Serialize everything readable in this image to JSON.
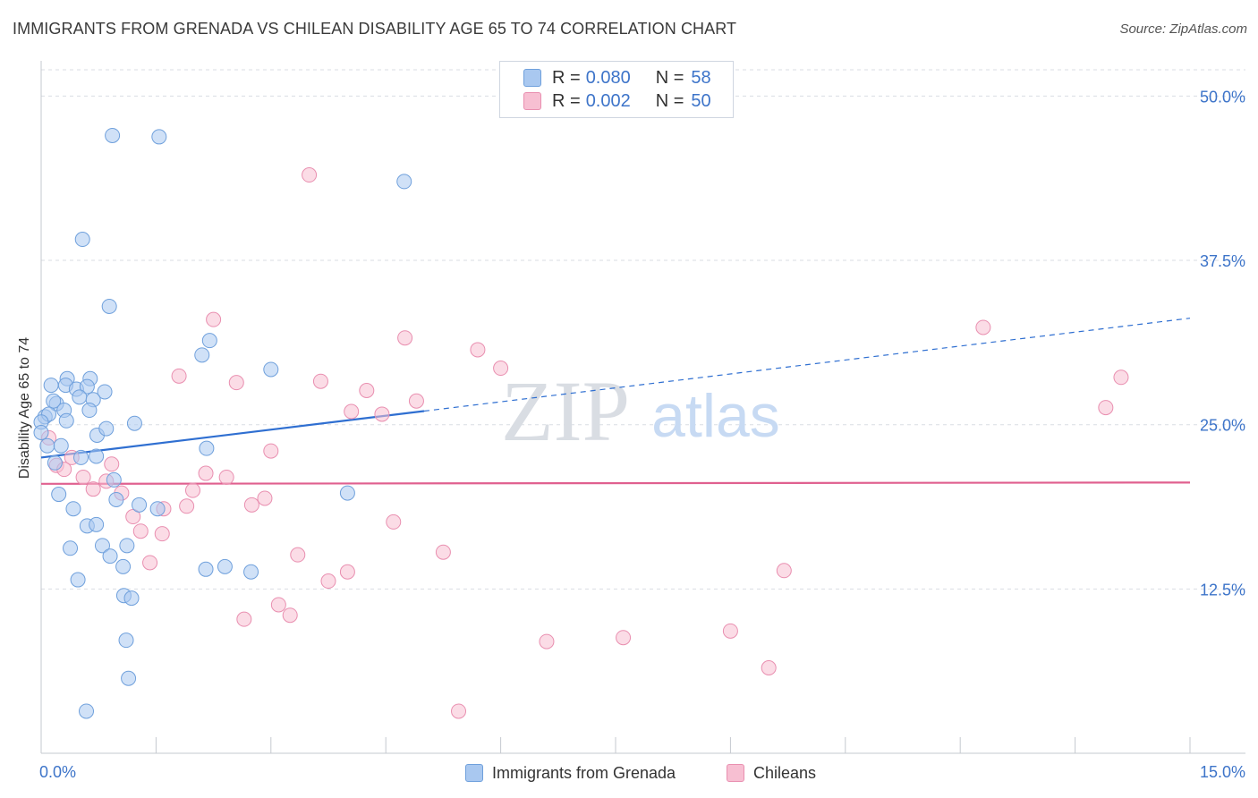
{
  "title": "IMMIGRANTS FROM GRENADA VS CHILEAN DISABILITY AGE 65 TO 74 CORRELATION CHART",
  "source": "Source: ZipAtlas.com",
  "watermark": {
    "zip": "ZIP",
    "atlas": "atlas"
  },
  "legend": {
    "series1": {
      "r_label": "R = ",
      "r_value": "0.080",
      "n_label": "N = ",
      "n_value": "58"
    },
    "series2": {
      "r_label": "R = ",
      "r_value": "0.002",
      "n_label": "N = ",
      "n_value": "50"
    }
  },
  "colors": {
    "blue_fill": "#a9c8f0",
    "blue_stroke": "#6fa0dc",
    "blue_line": "#2f6fd1",
    "pink_fill": "#f7bfd2",
    "pink_stroke": "#e98fb0",
    "pink_line": "#e0608f",
    "axis_text": "#3d74c9",
    "grid": "#d9dde3"
  },
  "chart_data": {
    "type": "scatter",
    "title": "IMMIGRANTS FROM GRENADA VS CHILEAN DISABILITY AGE 65 TO 74 CORRELATION CHART",
    "xlabel": "",
    "ylabel": "Disability Age 65 to 74",
    "xlim": [
      0,
      15
    ],
    "ylim": [
      0,
      52
    ],
    "x_tick_labels": [
      "0.0%",
      "15.0%"
    ],
    "y_ticks": [
      12.5,
      25.0,
      37.5,
      50.0
    ],
    "y_tick_labels": [
      "12.5%",
      "25.0%",
      "37.5%",
      "50.0%"
    ],
    "legend_position": "bottom",
    "series": [
      {
        "name": "Immigrants from Grenada",
        "color": "#a9c8f0",
        "r": 0.08,
        "n": 58,
        "trend": {
          "x0": 0.0,
          "y0": 22.5,
          "x1": 15.0,
          "y1": 33.1,
          "solid_until_x": 5.0
        },
        "points": [
          [
            0.93,
            47.0
          ],
          [
            1.54,
            46.9
          ],
          [
            4.74,
            43.5
          ],
          [
            0.54,
            39.1
          ],
          [
            0.89,
            34.0
          ],
          [
            2.1,
            30.3
          ],
          [
            2.2,
            31.4
          ],
          [
            3.0,
            29.2
          ],
          [
            0.13,
            28.0
          ],
          [
            0.34,
            28.5
          ],
          [
            0.64,
            28.5
          ],
          [
            0.32,
            28.0
          ],
          [
            0.46,
            27.7
          ],
          [
            0.6,
            27.9
          ],
          [
            0.83,
            27.5
          ],
          [
            0.5,
            27.1
          ],
          [
            0.68,
            26.9
          ],
          [
            0.2,
            26.6
          ],
          [
            0.16,
            26.8
          ],
          [
            0.05,
            25.6
          ],
          [
            0.1,
            25.8
          ],
          [
            0.3,
            26.1
          ],
          [
            0.63,
            26.1
          ],
          [
            0.33,
            25.3
          ],
          [
            0.0,
            25.2
          ],
          [
            0.0,
            24.4
          ],
          [
            0.73,
            24.2
          ],
          [
            0.85,
            24.7
          ],
          [
            1.22,
            25.1
          ],
          [
            0.08,
            23.4
          ],
          [
            0.26,
            23.4
          ],
          [
            2.16,
            23.2
          ],
          [
            0.18,
            22.1
          ],
          [
            0.52,
            22.5
          ],
          [
            0.72,
            22.6
          ],
          [
            0.95,
            20.8
          ],
          [
            4.0,
            19.8
          ],
          [
            0.23,
            19.7
          ],
          [
            0.98,
            19.3
          ],
          [
            1.28,
            18.9
          ],
          [
            1.52,
            18.6
          ],
          [
            0.42,
            18.6
          ],
          [
            0.6,
            17.3
          ],
          [
            0.72,
            17.4
          ],
          [
            0.38,
            15.6
          ],
          [
            0.8,
            15.8
          ],
          [
            1.12,
            15.8
          ],
          [
            0.9,
            15.0
          ],
          [
            1.07,
            14.2
          ],
          [
            2.15,
            14.0
          ],
          [
            2.4,
            14.2
          ],
          [
            2.74,
            13.8
          ],
          [
            0.48,
            13.2
          ],
          [
            1.08,
            12.0
          ],
          [
            1.18,
            11.8
          ],
          [
            1.11,
            8.6
          ],
          [
            1.14,
            5.7
          ],
          [
            0.59,
            3.2
          ]
        ]
      },
      {
        "name": "Chileans",
        "color": "#f7bfd2",
        "r": 0.002,
        "n": 50,
        "trend": {
          "x0": 0.0,
          "y0": 20.5,
          "x1": 15.0,
          "y1": 20.6
        },
        "points": [
          [
            3.5,
            44.0
          ],
          [
            2.25,
            33.0
          ],
          [
            12.3,
            32.4
          ],
          [
            4.75,
            31.6
          ],
          [
            5.7,
            30.7
          ],
          [
            6.0,
            29.3
          ],
          [
            1.8,
            28.7
          ],
          [
            2.55,
            28.2
          ],
          [
            3.65,
            28.3
          ],
          [
            4.25,
            27.6
          ],
          [
            14.1,
            28.6
          ],
          [
            4.9,
            26.8
          ],
          [
            13.9,
            26.3
          ],
          [
            4.05,
            26.0
          ],
          [
            4.45,
            25.8
          ],
          [
            0.1,
            24.0
          ],
          [
            0.4,
            22.5
          ],
          [
            0.2,
            21.9
          ],
          [
            0.3,
            21.6
          ],
          [
            0.92,
            22.0
          ],
          [
            3.0,
            23.0
          ],
          [
            0.55,
            21.0
          ],
          [
            2.15,
            21.3
          ],
          [
            2.42,
            21.0
          ],
          [
            0.85,
            20.7
          ],
          [
            0.68,
            20.1
          ],
          [
            1.05,
            19.8
          ],
          [
            1.98,
            20.0
          ],
          [
            2.92,
            19.4
          ],
          [
            2.75,
            18.9
          ],
          [
            1.9,
            18.8
          ],
          [
            1.6,
            18.6
          ],
          [
            1.2,
            18.0
          ],
          [
            4.6,
            17.6
          ],
          [
            1.3,
            16.9
          ],
          [
            1.58,
            16.7
          ],
          [
            5.25,
            15.3
          ],
          [
            3.35,
            15.1
          ],
          [
            1.42,
            14.5
          ],
          [
            4.0,
            13.8
          ],
          [
            9.7,
            13.9
          ],
          [
            3.75,
            13.1
          ],
          [
            3.1,
            11.3
          ],
          [
            3.25,
            10.5
          ],
          [
            2.65,
            10.2
          ],
          [
            6.6,
            8.5
          ],
          [
            7.6,
            8.8
          ],
          [
            9.0,
            9.3
          ],
          [
            9.5,
            6.5
          ],
          [
            5.45,
            3.2
          ]
        ]
      }
    ]
  }
}
